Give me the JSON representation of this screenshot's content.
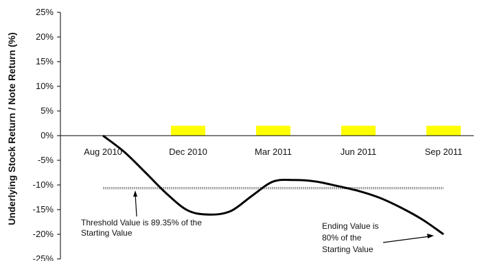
{
  "chart_data": {
    "type": "line",
    "ylabel": "Underlying Stock Return / Note Return (%)",
    "ylim": [
      -25,
      25
    ],
    "y_ticks": [
      "25%",
      "20%",
      "15%",
      "10%",
      "5%",
      "0%",
      "-5%",
      "-10%",
      "-15%",
      "-20%",
      "-25%"
    ],
    "y_tick_values": [
      25,
      20,
      15,
      10,
      5,
      0,
      -5,
      -10,
      -15,
      -20,
      -25
    ],
    "x_tick_labels": [
      "Aug 2010",
      "Dec 2010",
      "Mar 2011",
      "Jun 2011",
      "Sep 2011"
    ],
    "xlim": [
      0,
      4
    ],
    "grid": false,
    "legend": "none",
    "series": [
      {
        "kind": "line",
        "color": "#000000",
        "x": [
          0,
          0.25,
          0.5,
          0.75,
          1.0,
          1.25,
          1.5,
          1.75,
          2.0,
          2.25,
          2.5,
          2.75,
          3.0,
          3.25,
          3.5,
          3.75,
          4.0
        ],
        "y": [
          0,
          -3.3,
          -7.5,
          -11.8,
          -15.2,
          -16.0,
          -15.3,
          -12.2,
          -9.3,
          -9.0,
          -9.3,
          -10.2,
          -11.2,
          -12.6,
          -14.6,
          -17.0,
          -20.0
        ]
      },
      {
        "kind": "bar",
        "color": "#ffff00",
        "x": [
          1,
          2,
          3,
          4
        ],
        "values": [
          2,
          2,
          2,
          2
        ]
      }
    ],
    "threshold": {
      "value": -10.65,
      "color": "#666666"
    },
    "annotations": [
      {
        "lines": [
          "Threshold Value is 89.35% of the",
          "Starting Value"
        ],
        "points_to": [
          0.4,
          -10.65
        ]
      },
      {
        "lines": [
          "Ending Value is",
          "80% of the",
          "Starting Value"
        ],
        "points_to": [
          3.9,
          -19.7
        ]
      }
    ]
  }
}
